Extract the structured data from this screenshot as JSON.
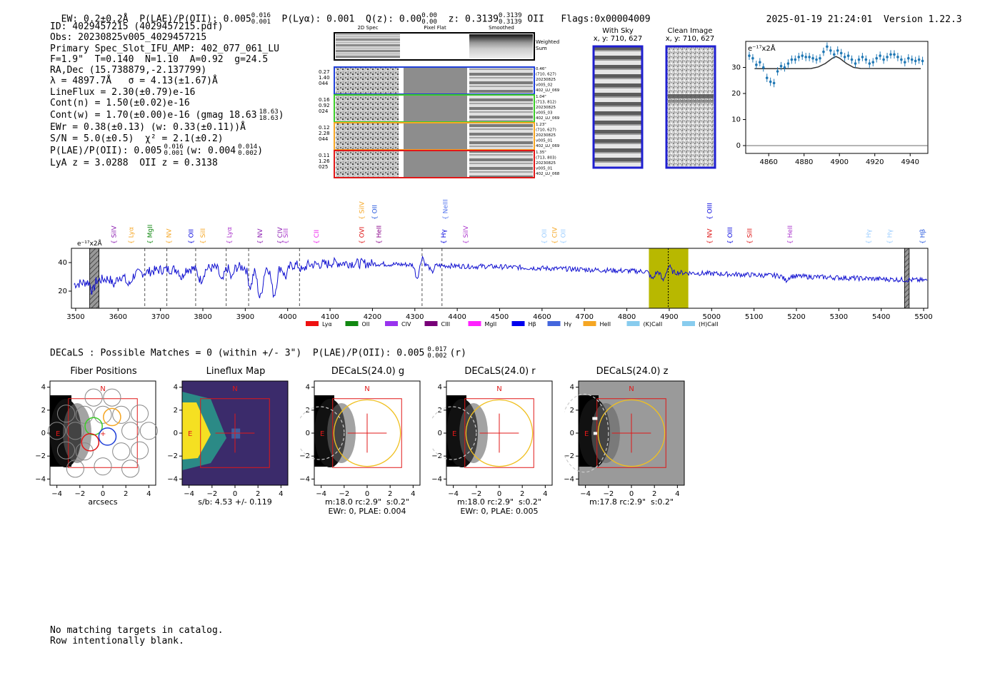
{
  "header": {
    "ew": "EW: 0.2±0.2Å",
    "plae_label": "P(LAE)/P(OII): 0.005",
    "plae_sup": "0.016",
    "plae_sub": "0.001",
    "plya": "P(Lyα): 0.001",
    "qz_label": "Q(z): 0.00",
    "qz_sup": "0.00",
    "qz_sub": "0.00",
    "z_label": "z: 0.3139",
    "z_sup": "0.3139",
    "z_sub": "0.3139",
    "z_line": "OII",
    "flags": "Flags:0x00004009",
    "datetime": "2025-01-19 21:24:01",
    "version": "Version 1.22.3"
  },
  "info": {
    "id": "ID: 4029457215 (4029457215.pdf)",
    "obs": "Obs: 20230825v005_4029457215",
    "slot": "Primary Spec_Slot_IFU_AMP: 402_077_061_LU",
    "fwhm": "F=1.9\"  T=0.140  N=1.10  A=0.92  g=24.5",
    "radec": "RA,Dec (15.738879,-2.137799)",
    "lambda": "λ = 4897.7Å   σ = 4.13(±1.67)Å",
    "lineflux": "LineFlux = 2.30(±0.79)e-16",
    "contn": "Cont(n) = 1.50(±0.02)e-16",
    "contw": "Cont(w) = 1.70(±0.00)e-16 (gmag 18.63",
    "gmag_sup": "18.63",
    "gmag_sub": "18.63",
    "ewr": "EWr = 0.38(±0.13) (w: 0.33(±0.11))Å",
    "snr": "S/N = 5.0(±0.5)  χ² = 2.1(±0.2)",
    "plae": "P(LAE)/P(OII): 0.005",
    "plae_sup": "0.016",
    "plae_sub": "0.001",
    "plae_w": "(w: 0.004",
    "plae_w_sup": "0.014",
    "plae_w_sub": "0.002",
    "lyaz": "LyA z = 3.0288  OII z = 0.3138"
  },
  "cutouts": {
    "col_headers": [
      "2D Spec",
      "Pixel Flat",
      "Smoothed"
    ],
    "weighted_label": "Weighted\nSum",
    "rows": [
      {
        "left": "0.27\n1.40\n044",
        "right": "0.46\"\n(710, 627)\n20230825\nv005_02\n402_LU_069",
        "color": "#1f3fd8"
      },
      {
        "left": "0.16\n0.92\n024",
        "right": "1.04\"\n(713, 812)\n20230825\nv005_03\n402_LU_069",
        "color": "#3ccc28"
      },
      {
        "left": "0.12\n2.28\n044",
        "right": "1.23\"\n(710, 627)\n20230825\nv005_01\n402_LU_069",
        "color": "#f5a623"
      },
      {
        "left": "0.11\n1.26\n025",
        "right": "1.35\"\n(713, 803)\n20230825\nv005_01\n402_LU_068",
        "color": "#e01818"
      }
    ],
    "with_sky_title": "With Sky",
    "with_sky_xy": "x, y: 710, 627",
    "clean_title": "Clean Image",
    "clean_xy": "x, y: 710, 627"
  },
  "zoom_plot": {
    "unit": "e⁻¹⁷x2Å",
    "x_ticks": [
      4860,
      4880,
      4900,
      4920,
      4940
    ],
    "y_ticks": [
      0,
      10,
      20,
      30
    ],
    "xlim": [
      4847,
      4950
    ],
    "ylim": [
      -3,
      40
    ],
    "data_x": [
      4849,
      4851,
      4853,
      4855,
      4857,
      4859,
      4861,
      4863,
      4865,
      4867,
      4869,
      4871,
      4873,
      4875,
      4877,
      4879,
      4881,
      4883,
      4885,
      4887,
      4889,
      4891,
      4893,
      4895,
      4897,
      4899,
      4901,
      4903,
      4905,
      4907,
      4909,
      4911,
      4913,
      4915,
      4917,
      4919,
      4921,
      4923,
      4925,
      4927,
      4929,
      4931,
      4933,
      4935,
      4937,
      4939,
      4941,
      4943,
      4945,
      4947
    ],
    "data_y": [
      34.5,
      33.5,
      31,
      32,
      30,
      26,
      24.5,
      24,
      28.5,
      30.5,
      30,
      31.5,
      33,
      33,
      34,
      34.5,
      34,
      34,
      33.5,
      33,
      33.5,
      36,
      38,
      36.5,
      35,
      36.5,
      35.5,
      34,
      34.5,
      33,
      31.5,
      33,
      34,
      33,
      31.5,
      32,
      33.5,
      34.5,
      33,
      34,
      35,
      35,
      34,
      33,
      32,
      33.5,
      33,
      32.5,
      33,
      32.5
    ],
    "model_x": [
      4852,
      4880,
      4884,
      4888,
      4892,
      4896,
      4898,
      4900,
      4904,
      4908,
      4912,
      4946
    ],
    "model_y": [
      29.5,
      29.5,
      29.6,
      30.2,
      31.5,
      33.5,
      34.2,
      33.6,
      31.5,
      30,
      29.6,
      29.5
    ]
  },
  "spectrum": {
    "unit": "e⁻¹⁷x2Å",
    "x_ticks": [
      3500,
      3600,
      3700,
      3800,
      3900,
      4000,
      4100,
      4200,
      4300,
      4400,
      4500,
      4600,
      4700,
      4800,
      4900,
      5000,
      5100,
      5200,
      5300,
      5400,
      5500
    ],
    "y_ticks": [
      20,
      40
    ],
    "xlim": [
      3490,
      5510
    ],
    "ylim": [
      8,
      50
    ],
    "highlight": [
      4852,
      4945
    ],
    "center": 4897.7,
    "hatched": [
      [
        3533,
        3555
      ],
      [
        5455,
        5466
      ]
    ],
    "dashed_lines": [
      3663,
      3715,
      3783,
      3855,
      3908,
      4028,
      4317,
      4364
    ],
    "line_labels": [
      {
        "label": "SiIV",
        "x": 3590,
        "row": 1,
        "color": "#8a1bb0"
      },
      {
        "label": "Lyα",
        "x": 3631,
        "row": 1,
        "color": "#f5a623"
      },
      {
        "label": "MgII",
        "x": 3675,
        "row": 1,
        "color": "#118811"
      },
      {
        "label": "NV",
        "x": 3720,
        "row": 1,
        "color": "#f5a623"
      },
      {
        "label": "OII",
        "x": 3772,
        "row": 1,
        "color": "#0000dd"
      },
      {
        "label": "SiII",
        "x": 3800,
        "row": 1,
        "color": "#f5a623"
      },
      {
        "label": "Lyα",
        "x": 3862,
        "row": 1,
        "color": "#aa33cc"
      },
      {
        "label": "NV",
        "x": 3935,
        "row": 1,
        "color": "#8a1bb0"
      },
      {
        "label": "CIV",
        "x": 3982,
        "row": 1,
        "color": "#8a1bb0"
      },
      {
        "label": "SiII",
        "x": 3995,
        "row": 1,
        "color": "#aa33cc"
      },
      {
        "label": "CII",
        "x": 4068,
        "row": 1,
        "color": "#ee22ee"
      },
      {
        "label": "SiIV",
        "x": 4175,
        "row": 0,
        "color": "#f5a623"
      },
      {
        "label": "OII",
        "x": 4205,
        "row": 0,
        "color": "#2255dd"
      },
      {
        "label": "OVI",
        "x": 4175,
        "row": 1,
        "color": "#dd1111"
      },
      {
        "label": "HeII",
        "x": 4215,
        "row": 1,
        "color": "#880088"
      },
      {
        "label": "NeIII",
        "x": 4372,
        "row": 0,
        "color": "#5577ee"
      },
      {
        "label": "Hγ",
        "x": 4368,
        "row": 1,
        "color": "#0000dd"
      },
      {
        "label": "SiIV",
        "x": 4420,
        "row": 1,
        "color": "#aa33cc"
      },
      {
        "label": "OII",
        "x": 4605,
        "row": 1,
        "color": "#99ccff"
      },
      {
        "label": "CIV",
        "x": 4630,
        "row": 1,
        "color": "#f5a623"
      },
      {
        "label": "OII",
        "x": 4650,
        "row": 1,
        "color": "#99ccff"
      },
      {
        "label": "OIII",
        "x": 4995,
        "row": 0,
        "color": "#0000dd"
      },
      {
        "label": "NV",
        "x": 4995,
        "row": 1,
        "color": "#dd1111"
      },
      {
        "label": "OIII",
        "x": 5043,
        "row": 1,
        "color": "#0000dd"
      },
      {
        "label": "SiII",
        "x": 5090,
        "row": 1,
        "color": "#dd1111"
      },
      {
        "label": "HeII",
        "x": 5185,
        "row": 1,
        "color": "#aa33cc"
      },
      {
        "label": "Hγ",
        "x": 5370,
        "row": 1,
        "color": "#99ccff"
      },
      {
        "label": "Hγ",
        "x": 5420,
        "row": 1,
        "color": "#99ccff"
      },
      {
        "label": "Hβ",
        "x": 5497,
        "row": 1,
        "color": "#2255dd"
      }
    ],
    "legend": [
      {
        "label": "Lyα",
        "color": "#ee1111"
      },
      {
        "label": "OII",
        "color": "#118811"
      },
      {
        "label": "CIV",
        "color": "#9933ee"
      },
      {
        "label": "CIII",
        "color": "#770077"
      },
      {
        "label": "MgII",
        "color": "#ff22ff"
      },
      {
        "label": "Hβ",
        "color": "#0000ee"
      },
      {
        "label": "Hγ",
        "color": "#4466dd"
      },
      {
        "label": "HeII",
        "color": "#f5a623"
      },
      {
        "label": "(K)CaII",
        "color": "#88ccee"
      },
      {
        "label": "(H)CaII",
        "color": "#88ccee"
      }
    ]
  },
  "decals": {
    "summary": "DECaLS : Possible Matches = 0 (within +/- 3\")  P(LAE)/P(OII): 0.005",
    "summary_sup": "0.017",
    "summary_sub": "0.002",
    "summary_band": "(r)",
    "ticks": [
      -4,
      -2,
      0,
      2,
      4
    ],
    "panels": [
      {
        "title": "Fiber Positions",
        "caption1": "arcsecs",
        "caption2": ""
      },
      {
        "title": "Lineflux Map",
        "caption1": "s/b: 4.53 +/- 0.119",
        "caption2": ""
      },
      {
        "title": "DECaLS(24.0) g",
        "caption1": "m:18.0 rc:2.9\"  s:0.2\"",
        "caption2": "EWr: 0, PLAE: 0.004"
      },
      {
        "title": "DECaLS(24.0) r",
        "caption1": "m:18.0 rc:2.9\"  s:0.2\"",
        "caption2": "EWr: 0, PLAE: 0.005"
      },
      {
        "title": "DECaLS(24.0) z",
        "caption1": "m:17.8 rc:2.9\"  s:0.2\"",
        "caption2": ""
      }
    ],
    "north": "N",
    "east": "E"
  },
  "footer": {
    "line1": "No matching targets in catalog.",
    "line2": "Row intentionally blank."
  }
}
